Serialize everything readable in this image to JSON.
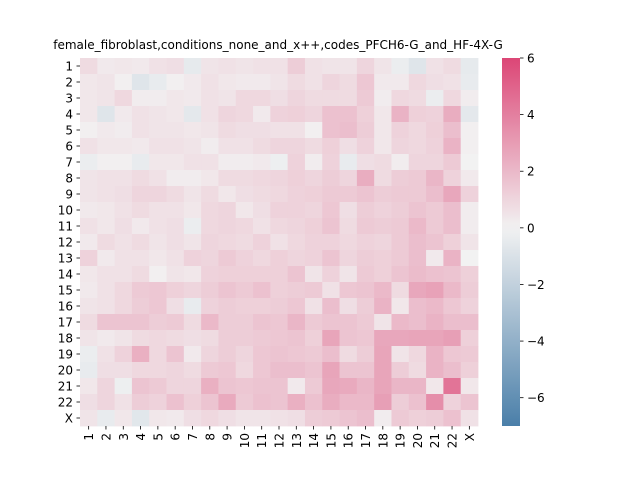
{
  "chart_data": {
    "type": "heatmap",
    "title": "female_fibroblast,conditions_none_and_x++,codes_PFCH6-G_and_HF-4X-G",
    "xlabel": "",
    "ylabel": "",
    "x_categories": [
      "1",
      "2",
      "3",
      "4",
      "5",
      "6",
      "7",
      "8",
      "9",
      "10",
      "11",
      "12",
      "13",
      "14",
      "15",
      "16",
      "17",
      "18",
      "19",
      "20",
      "21",
      "22",
      "X"
    ],
    "y_categories": [
      "1",
      "2",
      "3",
      "4",
      "5",
      "6",
      "7",
      "8",
      "9",
      "10",
      "11",
      "12",
      "13",
      "14",
      "15",
      "16",
      "17",
      "18",
      "19",
      "20",
      "21",
      "22",
      "X"
    ],
    "colorbar": {
      "vmin": -7,
      "vmax": 6,
      "ticks": [
        -6,
        -4,
        -2,
        0,
        2,
        4,
        6
      ],
      "tick_labels": [
        "−6",
        "−4",
        "−2",
        "0",
        "2",
        "4",
        "6"
      ],
      "low_color": "#4a7fa9",
      "mid_color": "#f2f2f2",
      "high_color": "#dc4676"
    },
    "values": [
      [
        0.8,
        0.3,
        0.4,
        0.3,
        0.6,
        0.7,
        -0.5,
        0.5,
        0.6,
        0.5,
        0.6,
        0.6,
        1.3,
        0.6,
        0.5,
        0.5,
        1.0,
        0.5,
        -0.3,
        -0.8,
        0.6,
        0.8,
        -0.5
      ],
      [
        0.4,
        0.5,
        0.1,
        -0.8,
        -0.4,
        0.1,
        0.3,
        0.6,
        0.4,
        0.3,
        0.3,
        0.5,
        0.8,
        0.6,
        1.0,
        0.8,
        1.5,
        0.3,
        0.3,
        0.9,
        0.7,
        0.6,
        -0.4
      ],
      [
        0.4,
        0.5,
        0.9,
        0.2,
        0.2,
        0.4,
        0.3,
        0.6,
        0.5,
        0.9,
        0.9,
        0.7,
        1.0,
        0.8,
        0.8,
        0.8,
        1.4,
        0.2,
        0.9,
        0.8,
        -0.3,
        0.9,
        0.2
      ],
      [
        0.4,
        -0.8,
        0.3,
        0.6,
        0.5,
        0.4,
        -0.6,
        0.6,
        1.0,
        0.9,
        0.3,
        1.1,
        1.2,
        1.0,
        1.7,
        1.7,
        1.2,
        0.4,
        2.2,
        1.2,
        1.1,
        2.4,
        -0.6
      ],
      [
        0.1,
        0.3,
        0.2,
        0.6,
        0.5,
        0.5,
        0.4,
        0.5,
        0.8,
        0.7,
        0.7,
        0.6,
        0.6,
        0.1,
        1.7,
        1.8,
        1.3,
        0.4,
        1.1,
        0.9,
        1.2,
        1.8,
        0.1
      ],
      [
        0.6,
        0.4,
        0.4,
        0.3,
        0.6,
        0.6,
        0.5,
        0.2,
        0.6,
        0.6,
        0.8,
        1.0,
        1.0,
        0.8,
        1.2,
        0.7,
        1.1,
        0.4,
        1.0,
        0.9,
        1.1,
        2.2,
        0.1
      ],
      [
        -0.3,
        0.1,
        0.1,
        -0.4,
        0.4,
        0.4,
        0.6,
        0.6,
        0.2,
        0.2,
        0.3,
        -0.2,
        1.1,
        0.2,
        1.1,
        -0.4,
        0.7,
        0.8,
        0.2,
        1.0,
        1.0,
        1.4,
        0.0
      ],
      [
        0.5,
        0.6,
        0.6,
        0.8,
        0.6,
        0.2,
        0.2,
        0.4,
        0.8,
        0.8,
        0.9,
        1.0,
        1.2,
        1.0,
        1.3,
        1.0,
        2.4,
        0.8,
        1.3,
        1.4,
        2.1,
        1.1,
        0.3
      ],
      [
        0.5,
        0.6,
        0.7,
        1.0,
        1.0,
        0.8,
        0.5,
        0.8,
        0.4,
        0.7,
        0.8,
        0.9,
        1.1,
        1.2,
        1.4,
        1.4,
        1.6,
        1.3,
        1.4,
        1.4,
        1.8,
        2.6,
        1.1
      ],
      [
        0.3,
        0.4,
        0.6,
        0.8,
        0.6,
        0.6,
        0.4,
        0.9,
        1.0,
        0.4,
        0.7,
        1.1,
        1.1,
        1.0,
        1.5,
        0.7,
        1.3,
        1.1,
        1.3,
        1.6,
        1.4,
        1.8,
        0.2
      ],
      [
        0.6,
        0.4,
        0.7,
        0.3,
        0.6,
        0.7,
        -0.3,
        0.9,
        1.0,
        0.9,
        0.6,
        0.9,
        1.0,
        1.2,
        1.6,
        0.8,
        1.4,
        1.3,
        1.4,
        2.0,
        1.4,
        1.8,
        0.2
      ],
      [
        0.3,
        0.8,
        0.6,
        0.8,
        0.5,
        0.7,
        0.5,
        1.0,
        0.9,
        0.8,
        1.1,
        0.6,
        0.9,
        1.1,
        1.1,
        0.9,
        1.1,
        1.0,
        1.4,
        1.8,
        1.6,
        1.2,
        0.5
      ],
      [
        1.1,
        0.3,
        0.6,
        0.6,
        0.4,
        0.6,
        1.1,
        1.0,
        1.4,
        1.1,
        0.9,
        1.2,
        1.0,
        1.1,
        1.6,
        1.0,
        1.3,
        1.2,
        1.4,
        1.8,
        0.3,
        2.2,
        0.0
      ],
      [
        0.4,
        0.6,
        0.6,
        0.8,
        0.1,
        0.5,
        0.4,
        1.1,
        1.2,
        1.2,
        1.2,
        1.2,
        1.6,
        0.5,
        1.1,
        0.5,
        1.4,
        1.2,
        1.6,
        1.9,
        1.7,
        1.6,
        1.2
      ],
      [
        0.3,
        0.6,
        0.9,
        1.4,
        1.5,
        1.2,
        1.0,
        1.3,
        1.6,
        1.4,
        1.7,
        1.2,
        1.3,
        1.4,
        0.6,
        1.5,
        1.6,
        2.0,
        0.8,
        2.6,
        2.8,
        2.0,
        1.3
      ],
      [
        0.5,
        0.6,
        0.9,
        1.3,
        1.5,
        0.7,
        -0.4,
        1.1,
        1.3,
        1.2,
        1.2,
        1.3,
        1.5,
        0.6,
        1.8,
        0.7,
        1.3,
        2.2,
        0.4,
        1.8,
        2.0,
        1.5,
        1.1
      ],
      [
        0.8,
        1.6,
        1.6,
        1.6,
        1.3,
        1.4,
        0.8,
        2.0,
        1.3,
        1.3,
        1.6,
        1.5,
        2.1,
        1.4,
        1.6,
        1.6,
        1.4,
        0.5,
        2.0,
        1.8,
        2.2,
        1.8,
        1.8
      ],
      [
        0.5,
        0.3,
        0.5,
        0.8,
        0.9,
        0.8,
        0.7,
        0.8,
        1.3,
        1.3,
        1.4,
        1.5,
        1.6,
        1.2,
        2.7,
        1.6,
        1.5,
        2.6,
        2.6,
        2.7,
        2.7,
        2.9,
        1.2
      ],
      [
        -0.3,
        0.6,
        1.1,
        2.3,
        0.9,
        1.6,
        0.3,
        1.0,
        1.3,
        1.0,
        1.5,
        1.6,
        1.5,
        1.4,
        1.8,
        0.8,
        1.3,
        2.7,
        0.5,
        0.9,
        2.2,
        1.5,
        1.4
      ],
      [
        -0.4,
        0.7,
        0.7,
        0.9,
        0.9,
        1.0,
        0.8,
        1.4,
        1.5,
        0.9,
        1.5,
        1.8,
        1.8,
        1.6,
        2.7,
        1.6,
        1.6,
        2.7,
        1.3,
        0.8,
        2.2,
        1.8,
        1.2
      ],
      [
        0.4,
        1.0,
        -0.2,
        1.6,
        1.4,
        1.0,
        1.0,
        2.3,
        1.6,
        1.5,
        1.6,
        1.6,
        0.3,
        1.4,
        2.6,
        2.5,
        2.1,
        2.7,
        2.1,
        2.1,
        0.4,
        4.4,
        0.4
      ],
      [
        0.7,
        1.0,
        0.6,
        1.3,
        1.1,
        1.7,
        1.2,
        1.6,
        2.5,
        1.4,
        1.7,
        1.6,
        2.3,
        1.7,
        2.4,
        2.0,
        2.0,
        2.9,
        1.3,
        1.7,
        3.5,
        1.1,
        1.6
      ],
      [
        0.5,
        -0.4,
        0.4,
        -0.7,
        0.4,
        0.3,
        0.7,
        0.9,
        0.7,
        0.5,
        0.5,
        0.6,
        0.7,
        1.3,
        1.4,
        1.6,
        1.8,
        0.2,
        1.4,
        1.2,
        1.3,
        1.7,
        0.6
      ]
    ]
  }
}
